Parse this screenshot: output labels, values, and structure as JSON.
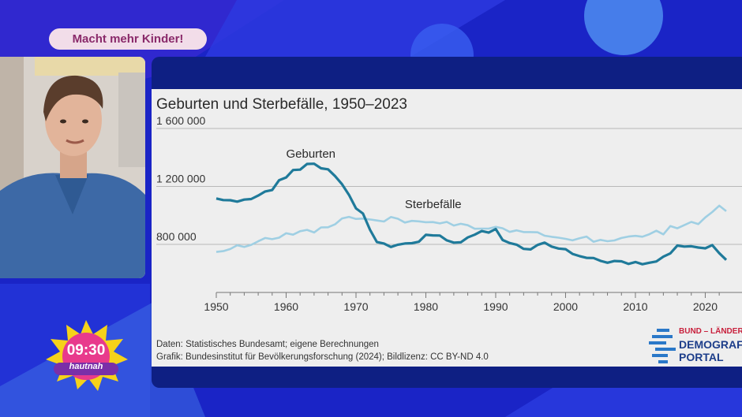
{
  "show": {
    "topic": "Macht mehr Kinder!",
    "clock_time": "09:30",
    "clock_brand": "hautnah"
  },
  "colors": {
    "background": "#1a24c6",
    "births_line": "#1f7a9a",
    "deaths_line": "#9fcfe3",
    "card": "#eeeeee"
  },
  "chart_data": {
    "type": "line",
    "title": "Geburten und Sterbefälle, 1950–2023",
    "x_ticks": [
      "1950",
      "1960",
      "1970",
      "1980",
      "1990",
      "2000",
      "2010",
      "2020"
    ],
    "y_ticks": [
      "1 600 000",
      "1 200 000",
      "800 000"
    ],
    "xlim": [
      1950,
      2023
    ],
    "ylim": [
      600000,
      1650000
    ],
    "grid": "horizontal",
    "x": [
      1950,
      1951,
      1952,
      1953,
      1954,
      1955,
      1956,
      1957,
      1958,
      1959,
      1960,
      1961,
      1962,
      1963,
      1964,
      1965,
      1966,
      1967,
      1968,
      1969,
      1970,
      1971,
      1972,
      1973,
      1974,
      1975,
      1976,
      1977,
      1978,
      1979,
      1980,
      1981,
      1982,
      1983,
      1984,
      1985,
      1986,
      1987,
      1988,
      1989,
      1990,
      1991,
      1992,
      1993,
      1994,
      1995,
      1996,
      1997,
      1998,
      1999,
      2000,
      2001,
      2002,
      2003,
      2004,
      2005,
      2006,
      2007,
      2008,
      2009,
      2010,
      2011,
      2012,
      2013,
      2014,
      2015,
      2016,
      2017,
      2018,
      2019,
      2020,
      2021,
      2022,
      2023
    ],
    "series": [
      {
        "name": "Geburten",
        "label_at": [
          1960,
          1400000
        ],
        "values": [
          1117000,
          1106000,
          1105000,
          1095000,
          1109000,
          1113000,
          1137000,
          1165000,
          1175000,
          1243000,
          1262000,
          1313000,
          1316000,
          1355000,
          1357000,
          1325000,
          1318000,
          1272000,
          1215000,
          1142000,
          1048000,
          1013000,
          901000,
          816000,
          806000,
          782000,
          798000,
          806000,
          808000,
          818000,
          866000,
          862000,
          861000,
          828000,
          812000,
          814000,
          848000,
          867000,
          892000,
          881000,
          906000,
          830000,
          809000,
          798000,
          769000,
          765000,
          796000,
          812000,
          785000,
          771000,
          767000,
          734000,
          719000,
          707000,
          706000,
          686000,
          673000,
          685000,
          683000,
          665000,
          678000,
          663000,
          673000,
          682000,
          715000,
          738000,
          792000,
          785000,
          787000,
          778000,
          773000,
          795000,
          739000,
          693000
        ]
      },
      {
        "name": "Sterbefälle",
        "label_at": [
          1977,
          1050000
        ],
        "values": [
          748000,
          753000,
          768000,
          794000,
          782000,
          797000,
          821000,
          844000,
          836000,
          846000,
          877000,
          867000,
          891000,
          900000,
          882000,
          917000,
          918000,
          938000,
          979000,
          990000,
          976000,
          978000,
          972000,
          965000,
          958000,
          989000,
          977000,
          951000,
          962000,
          959000,
          953000,
          954000,
          945000,
          955000,
          930000,
          942000,
          932000,
          908000,
          909000,
          909000,
          921000,
          911000,
          886000,
          897000,
          885000,
          885000,
          883000,
          860000,
          852000,
          846000,
          838000,
          828000,
          842000,
          854000,
          818000,
          831000,
          822000,
          827000,
          844000,
          854000,
          859000,
          853000,
          870000,
          894000,
          869000,
          926000,
          911000,
          933000,
          955000,
          940000,
          986000,
          1023000,
          1067000,
          1029000
        ]
      }
    ]
  },
  "sources": {
    "line1": "Daten: Statistisches Bundesamt; eigene Berechnungen",
    "line2": "Grafik: Bundesinstitut für Bevölkerungsforschung (2024); Bildlizenz: CC BY-ND 4.0"
  },
  "logo": {
    "small": "BUND – LÄNDER",
    "big1": "DEMOGRAFIE",
    "big2": "PORTAL"
  }
}
